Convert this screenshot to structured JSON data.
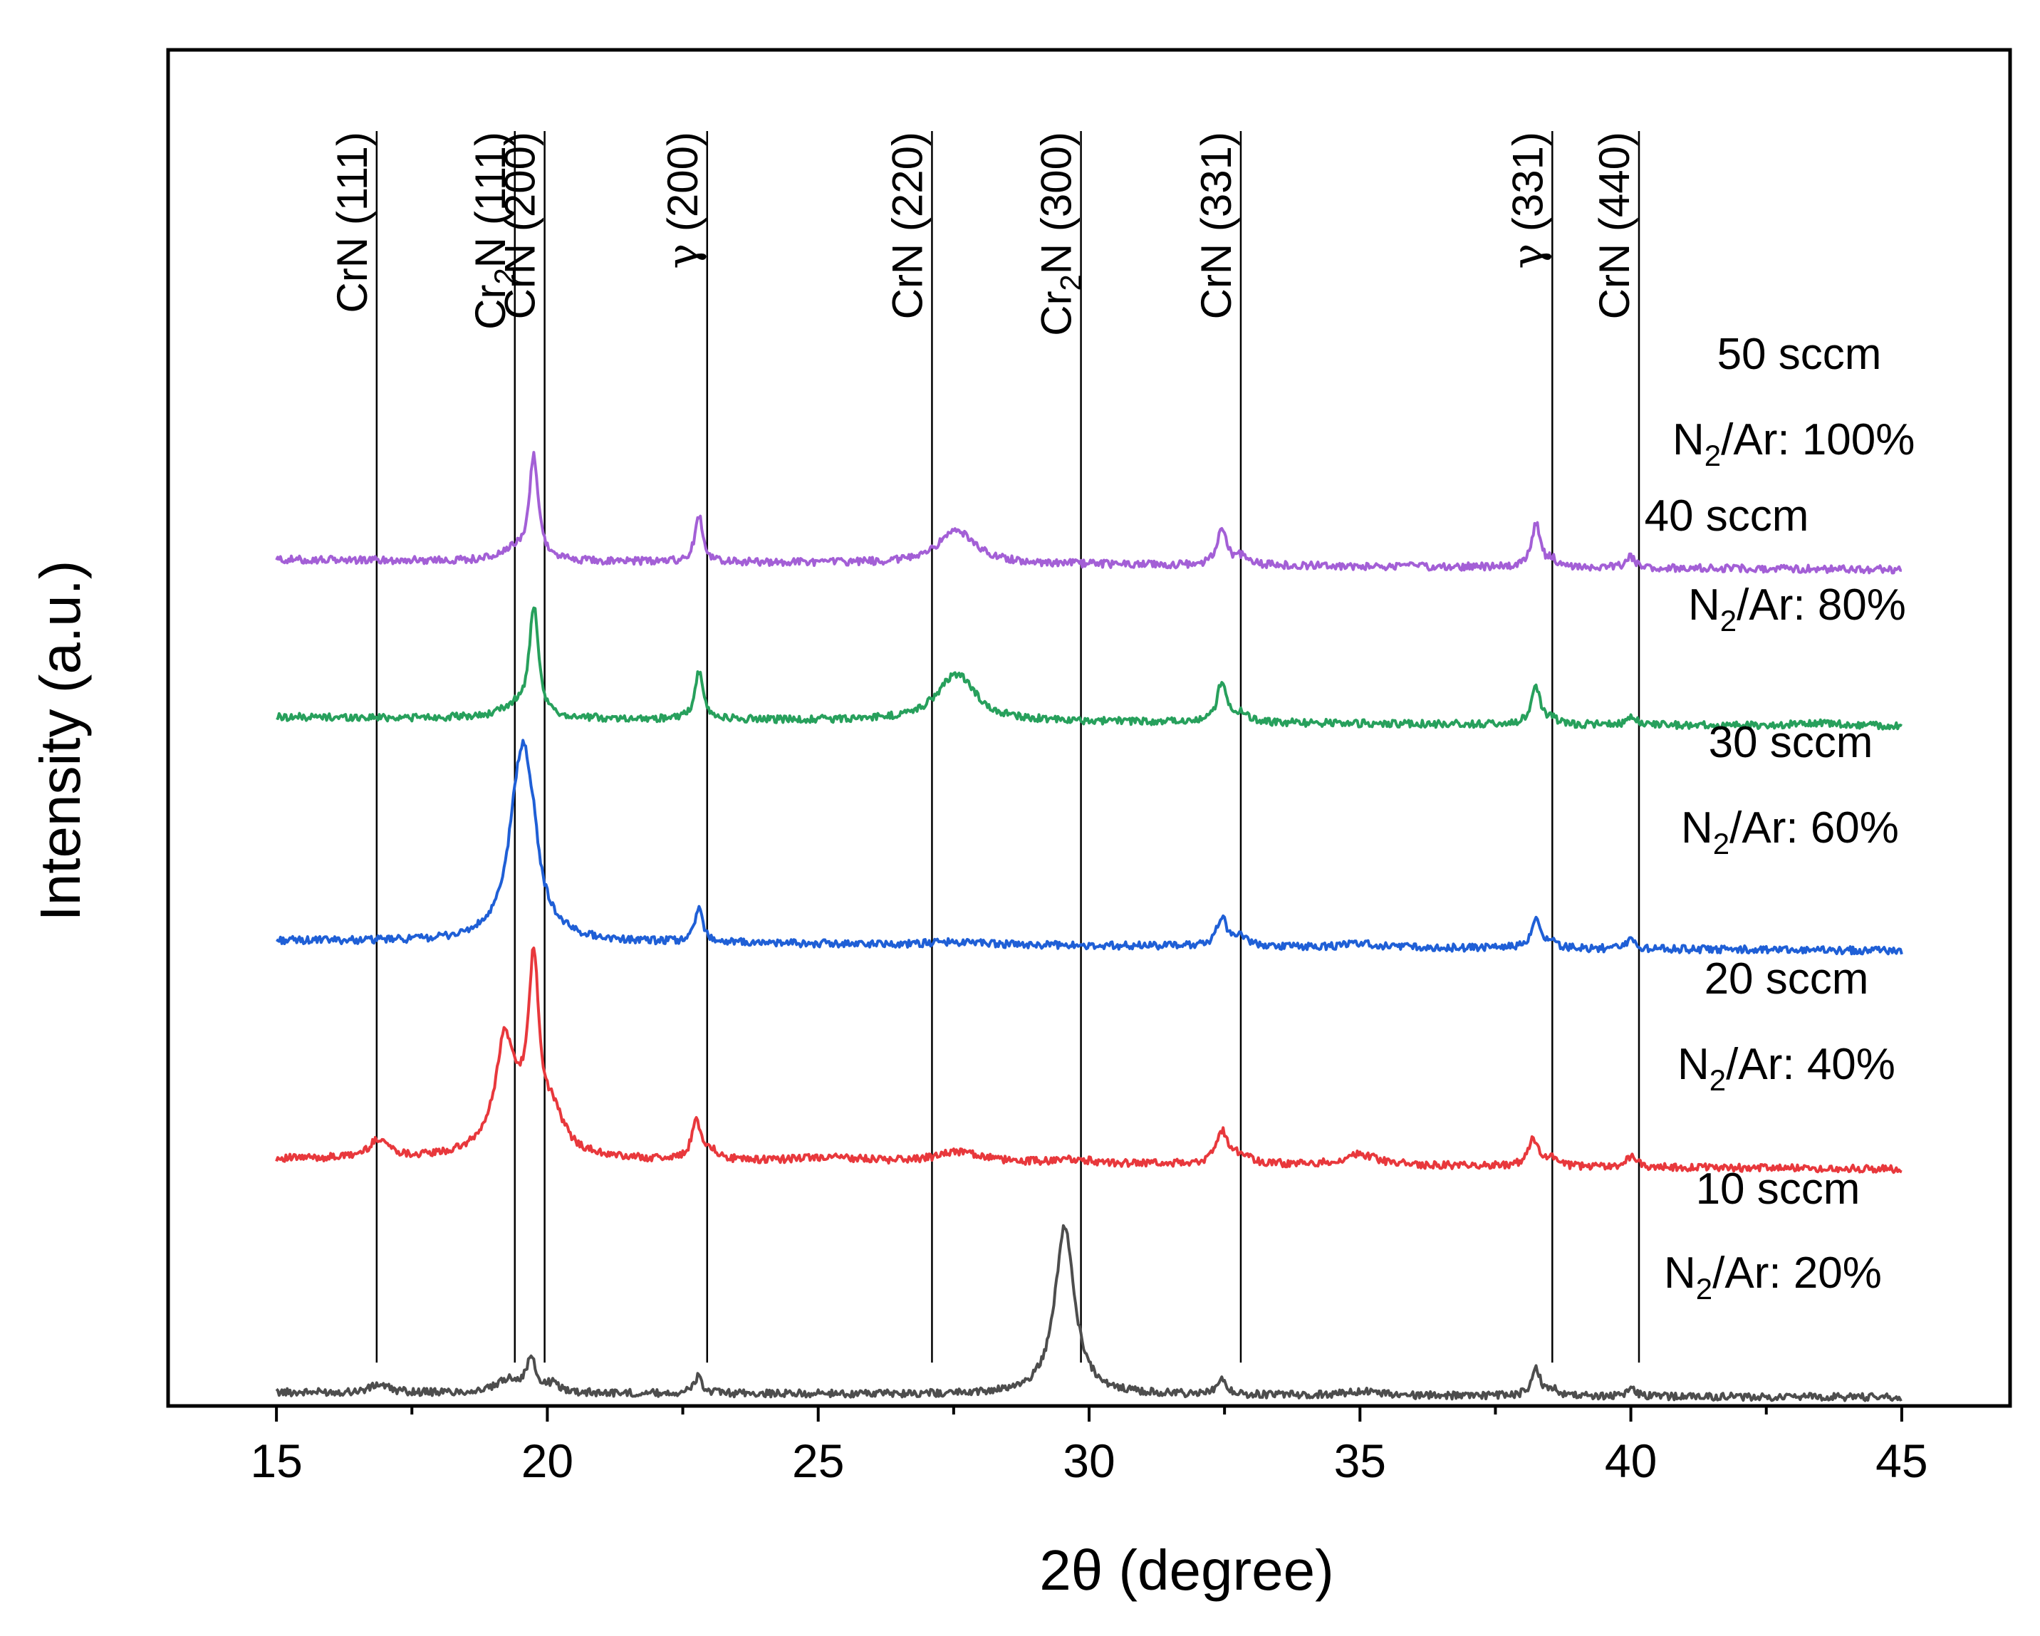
{
  "chart_data": {
    "type": "line",
    "title": "",
    "xlabel": "2θ  (degree)",
    "ylabel": "Intensity (a.u.)",
    "xlim": [
      13,
      47
    ],
    "ylim": [
      0,
      100
    ],
    "xticks": [
      15,
      20,
      25,
      30,
      35,
      40,
      45
    ],
    "xtick_labels": [
      "15",
      "20",
      "25",
      "30",
      "35",
      "40",
      "45"
    ],
    "minor_xticks": [
      17.5,
      22.5,
      27.5,
      32.5,
      37.5,
      42.5
    ],
    "grid": false,
    "y_ticks_labeled": false,
    "reference_lines": [
      {
        "name": "CrN (111)",
        "base": "CrN",
        "sub": "",
        "hkl": " (111)",
        "x": 16.85
      },
      {
        "name": "Cr2N (111)",
        "base": "Cr",
        "sub": "2",
        "rest": "N",
        "hkl": " (111)",
        "x": 19.4
      },
      {
        "name": "CrN (200)",
        "base": "CrN",
        "sub": "",
        "hkl": " (200)",
        "x": 19.95
      },
      {
        "name": "γ (200)",
        "base": "γ",
        "sub": "",
        "hkl": " (200)",
        "x": 22.95
      },
      {
        "name": "CrN (220)",
        "base": "CrN",
        "sub": "",
        "hkl": " (220)",
        "x": 27.1
      },
      {
        "name": "Cr2N (300)",
        "base": "Cr",
        "sub": "2",
        "rest": "N",
        "hkl": " (300)",
        "x": 29.85
      },
      {
        "name": "CrN (331)",
        "base": "CrN",
        "sub": "",
        "hkl": " (331)",
        "x": 32.8
      },
      {
        "name": "γ (331)",
        "base": "γ",
        "sub": "",
        "hkl": " (331)",
        "x": 38.55
      },
      {
        "name": "CrN (440)",
        "base": "CrN",
        "sub": "",
        "hkl": " (440)",
        "x": 40.15
      }
    ],
    "series": [
      {
        "name": "10 sccm",
        "label_flow": "10 sccm",
        "label_ratio_prefix": "N",
        "label_ratio_sub": "2",
        "label_ratio_suffix": "/Ar: 20%",
        "color": "#4d4d4d",
        "baseline": 1.0,
        "peaks": [
          [
            16.9,
            0.6,
            0.2
          ],
          [
            19.3,
            1.0,
            0.25
          ],
          [
            19.7,
            2.4,
            0.1
          ],
          [
            20.1,
            0.6,
            0.15
          ],
          [
            22.78,
            1.2,
            0.09
          ],
          [
            29.55,
            12.4,
            0.22
          ],
          [
            32.45,
            1.0,
            0.1
          ],
          [
            35.0,
            0.3,
            0.4
          ],
          [
            38.25,
            2.0,
            0.1
          ],
          [
            38.6,
            0.4,
            0.1
          ],
          [
            40.0,
            0.6,
            0.1
          ]
        ]
      },
      {
        "name": "20 sccm",
        "label_flow": "20 sccm",
        "label_ratio_prefix": "N",
        "label_ratio_sub": "2",
        "label_ratio_suffix": "/Ar: 40%",
        "color": "#e8383c",
        "baseline": 18.2,
        "peaks": [
          [
            16.9,
            1.4,
            0.22
          ],
          [
            19.2,
            6.0,
            0.18
          ],
          [
            19.75,
            12.2,
            0.11
          ],
          [
            19.4,
            3.5,
            0.45
          ],
          [
            20.1,
            2.5,
            0.25
          ],
          [
            22.75,
            2.8,
            0.1
          ],
          [
            23.0,
            0.7,
            0.15
          ],
          [
            25.2,
            0.3,
            0.8
          ],
          [
            27.6,
            0.8,
            0.5
          ],
          [
            29.7,
            0.3,
            0.4
          ],
          [
            32.45,
            2.4,
            0.13
          ],
          [
            32.8,
            0.6,
            0.2
          ],
          [
            35.0,
            0.8,
            0.4
          ],
          [
            38.2,
            2.0,
            0.12
          ],
          [
            38.55,
            0.5,
            0.1
          ],
          [
            40.0,
            0.8,
            0.12
          ]
        ]
      },
      {
        "name": "30 sccm",
        "label_flow": "30 sccm",
        "label_ratio_prefix": "N",
        "label_ratio_sub": "2",
        "label_ratio_suffix": "/Ar: 60%",
        "color": "#1f5fd6",
        "baseline": 34.3,
        "peaks": [
          [
            19.55,
            14.4,
            0.26
          ],
          [
            19.75,
            1.2,
            0.08
          ],
          [
            19.35,
            0.9,
            0.08
          ],
          [
            22.8,
            2.5,
            0.09
          ],
          [
            27.6,
            0.2,
            0.6
          ],
          [
            32.45,
            2.1,
            0.11
          ],
          [
            32.8,
            0.6,
            0.18
          ],
          [
            35.0,
            0.3,
            0.3
          ],
          [
            38.25,
            2.2,
            0.1
          ],
          [
            38.55,
            0.4,
            0.08
          ],
          [
            40.0,
            0.6,
            0.1
          ]
        ]
      },
      {
        "name": "40 sccm",
        "label_flow": "40 sccm",
        "label_ratio_prefix": "N",
        "label_ratio_sub": "2",
        "label_ratio_suffix": "/Ar: 80%",
        "color": "#27a05c",
        "baseline": 50.8,
        "peaks": [
          [
            19.75,
            8.0,
            0.1
          ],
          [
            19.4,
            0.8,
            0.3
          ],
          [
            22.8,
            3.5,
            0.09
          ],
          [
            27.55,
            3.5,
            0.42
          ],
          [
            32.45,
            3.0,
            0.1
          ],
          [
            32.8,
            0.6,
            0.15
          ],
          [
            38.25,
            2.8,
            0.1
          ],
          [
            38.55,
            0.5,
            0.08
          ],
          [
            40.05,
            0.6,
            0.1
          ],
          [
            43.5,
            0.2,
            0.8
          ]
        ]
      },
      {
        "name": "50 sccm",
        "label_flow": "50 sccm",
        "label_ratio_prefix": "N",
        "label_ratio_sub": "2",
        "label_ratio_suffix": "/Ar: 100%",
        "color": "#a35fd6",
        "baseline": 62.4,
        "peaks": [
          [
            19.75,
            7.6,
            0.1
          ],
          [
            19.4,
            0.7,
            0.3
          ],
          [
            22.8,
            3.4,
            0.09
          ],
          [
            27.55,
            2.4,
            0.42
          ],
          [
            32.45,
            2.7,
            0.1
          ],
          [
            32.8,
            0.6,
            0.15
          ],
          [
            38.25,
            3.2,
            0.1
          ],
          [
            38.55,
            0.5,
            0.08
          ],
          [
            40.0,
            0.8,
            0.1
          ]
        ]
      }
    ]
  }
}
